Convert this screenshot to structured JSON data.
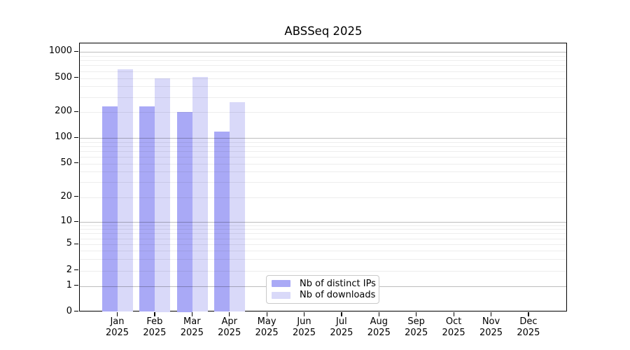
{
  "title": "ABSSeq 2025",
  "chart_data": {
    "type": "bar",
    "title": "ABSSeq 2025",
    "yscale": "symlog",
    "xlabel": "",
    "ylabel": "",
    "grid": "horizontal major and minor gridlines, drawn over bars",
    "legend_position": "inside bottom-center",
    "ylim": [
      0,
      1300
    ],
    "yticks": [
      0,
      1,
      2,
      5,
      10,
      20,
      50,
      100,
      200,
      500,
      1000
    ],
    "categories": [
      "Jan 2025",
      "Feb 2025",
      "Mar 2025",
      "Apr 2025",
      "May 2025",
      "Jun 2025",
      "Jul 2025",
      "Aug 2025",
      "Sep 2025",
      "Oct 2025",
      "Nov 2025",
      "Dec 2025"
    ],
    "month_labels": [
      "Jan",
      "Feb",
      "Mar",
      "Apr",
      "May",
      "Jun",
      "Jul",
      "Aug",
      "Sep",
      "Oct",
      "Nov",
      "Dec"
    ],
    "year_label": "2025",
    "series": [
      {
        "name": "Nb of distinct IPs",
        "color": "#a9a9f6",
        "values": [
          233,
          233,
          200,
          118,
          null,
          null,
          null,
          null,
          null,
          null,
          null,
          null
        ]
      },
      {
        "name": "Nb of downloads",
        "color": "#d9d9f9",
        "values": [
          633,
          500,
          510,
          260,
          null,
          null,
          null,
          null,
          null,
          null,
          null,
          null
        ]
      }
    ]
  }
}
